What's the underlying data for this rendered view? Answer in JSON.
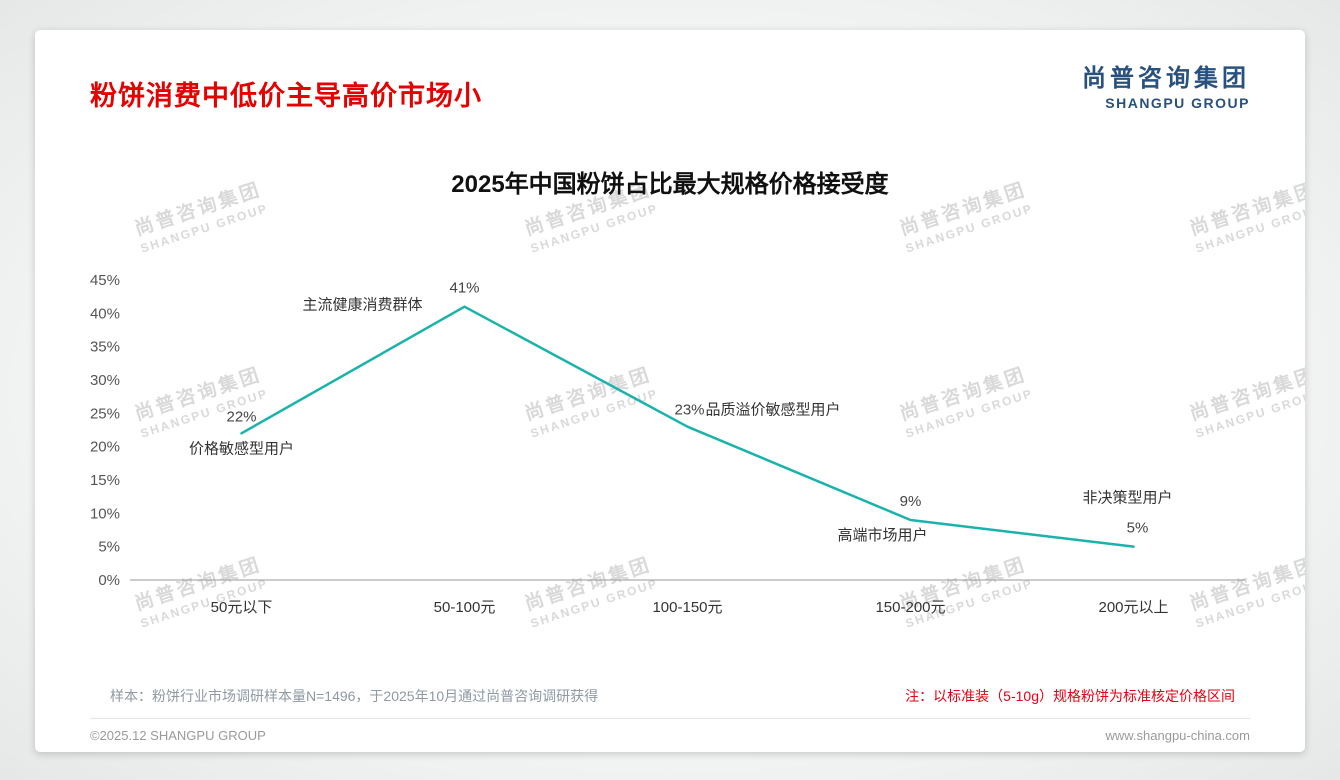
{
  "page": {
    "title": "粉饼消费中低价主导高价市场小",
    "logo": {
      "cn": "尚普咨询集团",
      "en": "SHANGPU GROUP"
    },
    "watermark": {
      "cn": "尚普咨询集团",
      "en": "SHANGPU GROUP"
    },
    "footnote_left": "样本：粉饼行业市场调研样本量N=1496，于2025年10月通过尚普咨询调研获得",
    "footnote_right": "注：以标准装（5-10g）规格粉饼为标准核定价格区间",
    "footer_left": "©2025.12 SHANGPU GROUP",
    "footer_right": "www.shangpu-china.com"
  },
  "chart_data": {
    "type": "line",
    "title": "2025年中国粉饼占比最大规格价格接受度",
    "categories": [
      "50元以下",
      "50-100元",
      "100-150元",
      "150-200元",
      "200元以上"
    ],
    "values": [
      22,
      41,
      23,
      9,
      5
    ],
    "value_labels": [
      "22%",
      "41%",
      "23%",
      "9%",
      "5%"
    ],
    "point_annotations": [
      "价格敏感型用户",
      "主流健康消费群体",
      "品质溢价敏感型用户",
      "高端市场用户",
      "非决策型用户"
    ],
    "xlabel": "",
    "ylabel": "",
    "ylim": [
      0,
      45
    ],
    "ytick_step": 5,
    "ytick_labels": [
      "0%",
      "5%",
      "10%",
      "15%",
      "20%",
      "25%",
      "30%",
      "35%",
      "40%",
      "45%"
    ],
    "line_color": "#1ab3ab",
    "grid": false,
    "legend": "none"
  }
}
